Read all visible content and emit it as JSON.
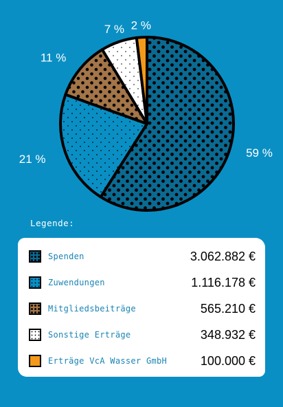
{
  "chart_data": {
    "type": "pie",
    "categories": [
      "Spenden",
      "Zuwendungen",
      "Mitgliedsbeiträge",
      "Sonstige Erträge",
      "Erträge VcA Wasser GmbH"
    ],
    "values": [
      3062882,
      1116178,
      565210,
      348932,
      100000
    ],
    "percent_labels": [
      "59 %",
      "21 %",
      "11 %",
      "7 %",
      "2 %"
    ],
    "colors": [
      "#0b6a92",
      "#0a8fc4",
      "#a37548",
      "#ffffff",
      "#f39a1a"
    ],
    "patterns": [
      "dots-large",
      "dots-small",
      "dots-large",
      "dots-small",
      "solid"
    ],
    "legend_position": "bottom"
  },
  "legend": {
    "title": "Legende:",
    "items": [
      {
        "label": "Spenden",
        "value": "3.062.882 €"
      },
      {
        "label": "Zuwendungen",
        "value": "1.116.178 €"
      },
      {
        "label": "Mitgliedsbeiträge",
        "value": "565.210 €"
      },
      {
        "label": "Sonstige Erträge",
        "value": "348.932 €"
      },
      {
        "label": "Erträge VcA Wasser GmbH",
        "value": "100.000 €"
      }
    ]
  }
}
